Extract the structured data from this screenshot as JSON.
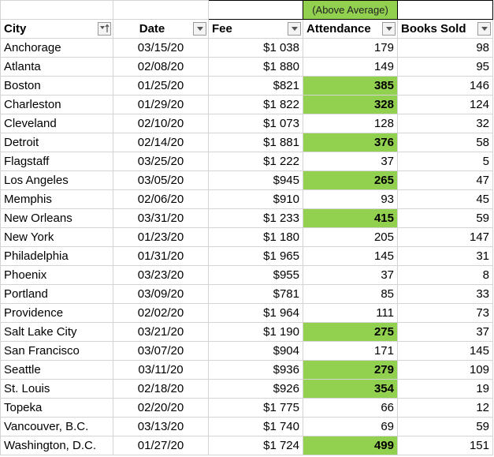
{
  "sheet": {
    "note": "(Above Average)",
    "columns": [
      "City",
      "Date",
      "Fee",
      "Attendance",
      "Books Sold"
    ],
    "rows": [
      {
        "city": "Anchorage",
        "date": "03/15/20",
        "fee": "$1 038",
        "attendance": "179",
        "books": "98",
        "highlight": false
      },
      {
        "city": "Atlanta",
        "date": "02/08/20",
        "fee": "$1 880",
        "attendance": "149",
        "books": "95",
        "highlight": false
      },
      {
        "city": "Boston",
        "date": "01/25/20",
        "fee": "$821",
        "attendance": "385",
        "books": "146",
        "highlight": true
      },
      {
        "city": "Charleston",
        "date": "01/29/20",
        "fee": "$1 822",
        "attendance": "328",
        "books": "124",
        "highlight": true
      },
      {
        "city": "Cleveland",
        "date": "02/10/20",
        "fee": "$1 073",
        "attendance": "128",
        "books": "32",
        "highlight": false
      },
      {
        "city": "Detroit",
        "date": "02/14/20",
        "fee": "$1 881",
        "attendance": "376",
        "books": "58",
        "highlight": true
      },
      {
        "city": "Flagstaff",
        "date": "03/25/20",
        "fee": "$1 222",
        "attendance": "37",
        "books": "5",
        "highlight": false
      },
      {
        "city": "Los Angeles",
        "date": "03/05/20",
        "fee": "$945",
        "attendance": "265",
        "books": "47",
        "highlight": true
      },
      {
        "city": "Memphis",
        "date": "02/06/20",
        "fee": "$910",
        "attendance": "93",
        "books": "45",
        "highlight": false
      },
      {
        "city": "New Orleans",
        "date": "03/31/20",
        "fee": "$1 233",
        "attendance": "415",
        "books": "59",
        "highlight": true
      },
      {
        "city": "New York",
        "date": "01/23/20",
        "fee": "$1 180",
        "attendance": "205",
        "books": "147",
        "highlight": false
      },
      {
        "city": "Philadelphia",
        "date": "01/31/20",
        "fee": "$1 965",
        "attendance": "145",
        "books": "31",
        "highlight": false
      },
      {
        "city": "Phoenix",
        "date": "03/23/20",
        "fee": "$955",
        "attendance": "37",
        "books": "8",
        "highlight": false
      },
      {
        "city": "Portland",
        "date": "03/09/20",
        "fee": "$781",
        "attendance": "85",
        "books": "33",
        "highlight": false
      },
      {
        "city": "Providence",
        "date": "02/02/20",
        "fee": "$1 964",
        "attendance": "111",
        "books": "73",
        "highlight": false
      },
      {
        "city": "Salt Lake City",
        "date": "03/21/20",
        "fee": "$1 190",
        "attendance": "275",
        "books": "37",
        "highlight": true
      },
      {
        "city": "San Francisco",
        "date": "03/07/20",
        "fee": "$904",
        "attendance": "171",
        "books": "145",
        "highlight": false
      },
      {
        "city": "Seattle",
        "date": "03/11/20",
        "fee": "$936",
        "attendance": "279",
        "books": "109",
        "highlight": true
      },
      {
        "city": "St. Louis",
        "date": "02/18/20",
        "fee": "$926",
        "attendance": "354",
        "books": "19",
        "highlight": true
      },
      {
        "city": "Topeka",
        "date": "02/20/20",
        "fee": "$1 775",
        "attendance": "66",
        "books": "12",
        "highlight": false
      },
      {
        "city": "Vancouver, B.C.",
        "date": "03/13/20",
        "fee": "$1 740",
        "attendance": "69",
        "books": "59",
        "highlight": false
      },
      {
        "city": "Washington, D.C.",
        "date": "01/27/20",
        "fee": "$1 724",
        "attendance": "499",
        "books": "151",
        "highlight": true
      }
    ]
  },
  "colors": {
    "highlight": "#92d050",
    "gridline": "#d4d4d4"
  },
  "icons": {
    "city_filter": "sort-ascending-filter-icon",
    "column_filter": "dropdown-filter-icon"
  }
}
